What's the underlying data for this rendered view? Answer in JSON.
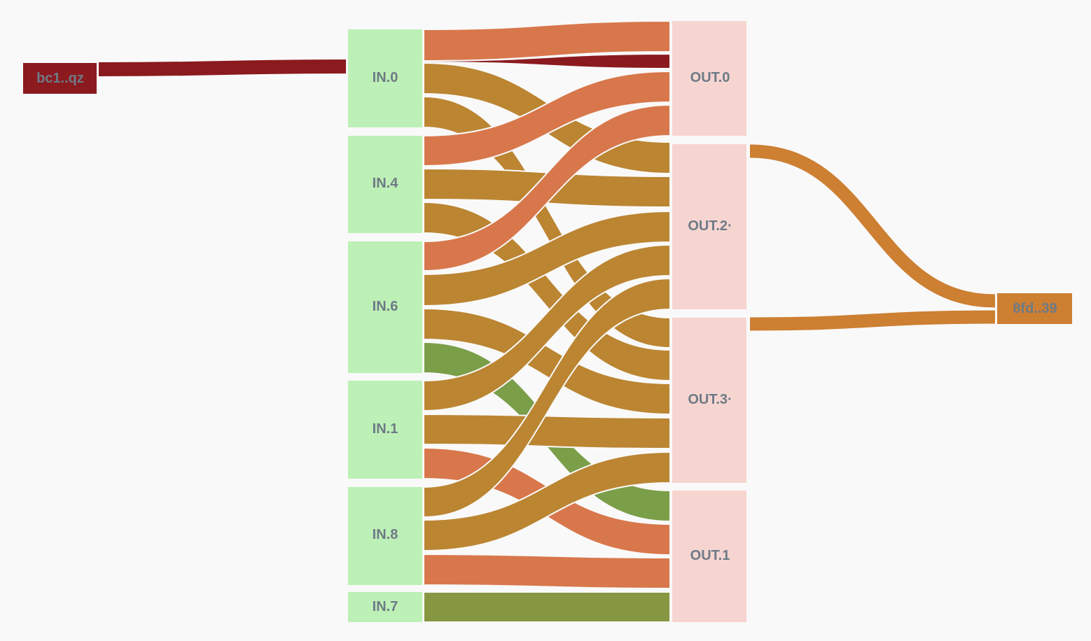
{
  "colors": {
    "background": "#f9f9f9",
    "input_node": "#bdf0b6",
    "output_node": "#f6d5d1",
    "address_prev": "#8b1a1f",
    "address_next": "#cd7f32",
    "label": "#6e7a86",
    "flow_orange": "#d8774b",
    "flow_gold": "#bb8532",
    "flow_green": "#7b9e49",
    "flow_olive": "#869741",
    "flow_red": "#8b1a1f"
  },
  "addresses": {
    "prev": "bc1..qz",
    "next": "8fd..39"
  },
  "inputs": [
    {
      "id": "IN.0",
      "label": "IN.0"
    },
    {
      "id": "IN.4",
      "label": "IN.4"
    },
    {
      "id": "IN.6",
      "label": "IN.6"
    },
    {
      "id": "IN.1",
      "label": "IN.1"
    },
    {
      "id": "IN.8",
      "label": "IN.8"
    },
    {
      "id": "IN.7",
      "label": "IN.7"
    }
  ],
  "outputs": [
    {
      "id": "OUT.0",
      "label": "OUT.0"
    },
    {
      "id": "OUT.2",
      "label": "OUT.2·"
    },
    {
      "id": "OUT.3",
      "label": "OUT.3·"
    },
    {
      "id": "OUT.1",
      "label": "OUT.1"
    }
  ],
  "flows": [
    {
      "from": "IN.0",
      "to": "OUT.0",
      "color": "flow_orange"
    },
    {
      "from": "IN.0",
      "to": "OUT.0",
      "color": "flow_red"
    },
    {
      "from": "IN.0",
      "to": "OUT.2",
      "color": "flow_gold"
    },
    {
      "from": "IN.0",
      "to": "OUT.3",
      "color": "flow_gold"
    },
    {
      "from": "IN.4",
      "to": "OUT.0",
      "color": "flow_orange"
    },
    {
      "from": "IN.4",
      "to": "OUT.2",
      "color": "flow_gold"
    },
    {
      "from": "IN.4",
      "to": "OUT.3",
      "color": "flow_gold"
    },
    {
      "from": "IN.6",
      "to": "OUT.0",
      "color": "flow_orange"
    },
    {
      "from": "IN.6",
      "to": "OUT.2",
      "color": "flow_gold"
    },
    {
      "from": "IN.6",
      "to": "OUT.3",
      "color": "flow_gold"
    },
    {
      "from": "IN.6",
      "to": "OUT.1",
      "color": "flow_green"
    },
    {
      "from": "IN.1",
      "to": "OUT.2",
      "color": "flow_gold"
    },
    {
      "from": "IN.1",
      "to": "OUT.3",
      "color": "flow_gold"
    },
    {
      "from": "IN.1",
      "to": "OUT.1",
      "color": "flow_orange"
    },
    {
      "from": "IN.8",
      "to": "OUT.2",
      "color": "flow_gold"
    },
    {
      "from": "IN.8",
      "to": "OUT.3",
      "color": "flow_gold"
    },
    {
      "from": "IN.8",
      "to": "OUT.1",
      "color": "flow_orange"
    },
    {
      "from": "IN.7",
      "to": "OUT.1",
      "color": "flow_olive"
    }
  ],
  "links": [
    {
      "from": "bc1..qz",
      "to": "IN.0"
    },
    {
      "from": "OUT.2",
      "to": "8fd..39"
    },
    {
      "from": "OUT.3",
      "to": "8fd..39"
    }
  ]
}
